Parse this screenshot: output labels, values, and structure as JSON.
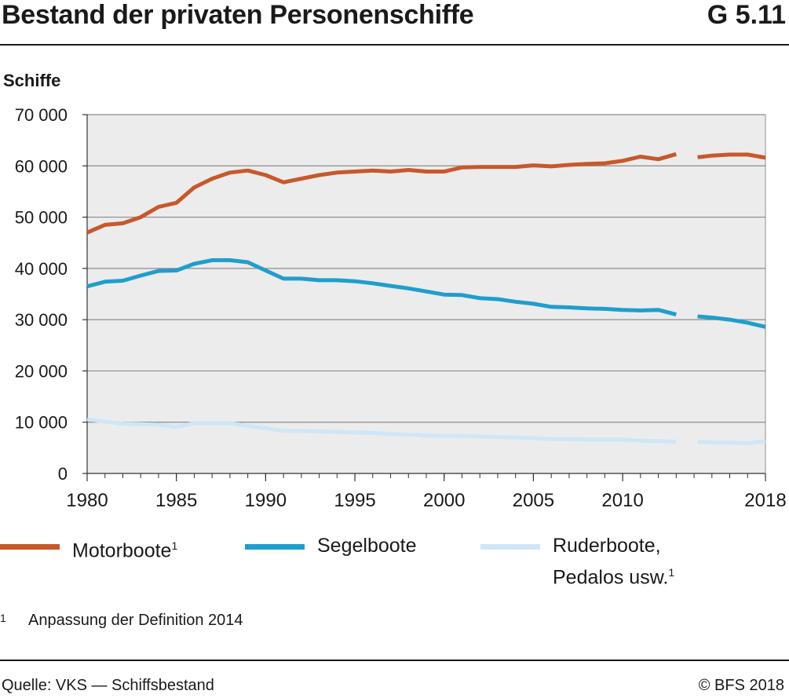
{
  "header": {
    "title": "Bestand der privaten Personenschiffe",
    "code": "G 5.11"
  },
  "legend": [
    {
      "label": "Motorboote",
      "sup": "1",
      "color": "#c8582a"
    },
    {
      "label": "Segelboote",
      "sup": "",
      "color": "#1f9ecc"
    },
    {
      "label_line1": "Ruderboote,",
      "label_line2": "Pedalos usw.",
      "sup": "1",
      "color": "#cfe6f7"
    }
  ],
  "footnote": {
    "mark": "1",
    "text": "Anpassung der Definition 2014"
  },
  "footer": {
    "source": "Quelle: VKS — Schiffsbestand",
    "copyright": "© BFS 2018"
  },
  "chart_data": {
    "type": "line",
    "title": "Bestand der privaten Personenschiffe",
    "ylabel": "Schiffe",
    "xlabel": "",
    "xlim": [
      1980,
      2018
    ],
    "ylim": [
      0,
      70000
    ],
    "x_ticks": [
      1980,
      1985,
      1990,
      1995,
      2000,
      2005,
      2010,
      2018
    ],
    "x_tick_labels": [
      "1980",
      "1985",
      "1990",
      "1995",
      "2000",
      "2005",
      "2010",
      "2018"
    ],
    "y_ticks": [
      0,
      10000,
      20000,
      30000,
      40000,
      50000,
      60000,
      70000
    ],
    "y_tick_labels": [
      "0",
      "10 000",
      "20 000",
      "30 000",
      "40 000",
      "50 000",
      "60 000",
      "70 000"
    ],
    "grid": "horizontal",
    "background": "#ececec",
    "series_break": {
      "after": 2013,
      "before": 2014,
      "note": "Anpassung der Definition 2014"
    },
    "x": [
      1980,
      1981,
      1982,
      1983,
      1984,
      1985,
      1986,
      1987,
      1988,
      1989,
      1990,
      1991,
      1992,
      1993,
      1994,
      1995,
      1996,
      1997,
      1998,
      1999,
      2000,
      2001,
      2002,
      2003,
      2004,
      2005,
      2006,
      2007,
      2008,
      2009,
      2010,
      2011,
      2012,
      2013,
      2014,
      2015,
      2016,
      2017,
      2018
    ],
    "series": [
      {
        "name": "Motorboote",
        "color": "#c8582a",
        "values": [
          47000,
          48500,
          48800,
          50000,
          52000,
          52800,
          55800,
          57500,
          58700,
          59100,
          58200,
          56800,
          57500,
          58200,
          58700,
          58900,
          59100,
          58900,
          59200,
          58900,
          58900,
          59700,
          59800,
          59800,
          59800,
          60100,
          59900,
          60200,
          60400,
          60500,
          61000,
          61800,
          61300,
          62300,
          61600,
          62000,
          62200,
          62200,
          61600
        ]
      },
      {
        "name": "Segelboote",
        "color": "#1f9ecc",
        "values": [
          36500,
          37400,
          37600,
          38600,
          39500,
          39600,
          40900,
          41600,
          41600,
          41200,
          39600,
          38000,
          38000,
          37700,
          37700,
          37500,
          37100,
          36600,
          36100,
          35500,
          34900,
          34800,
          34200,
          34000,
          33500,
          33100,
          32500,
          32400,
          32200,
          32100,
          31900,
          31800,
          31900,
          31000,
          30700,
          30400,
          30000,
          29400,
          28600
        ]
      },
      {
        "name": "Ruderboote, Pedalos usw.",
        "color": "#cfe6f7",
        "values": [
          10600,
          10100,
          9700,
          9600,
          9500,
          9100,
          9800,
          9800,
          9800,
          9300,
          8800,
          8300,
          8300,
          8200,
          8100,
          8000,
          7900,
          7700,
          7600,
          7400,
          7300,
          7300,
          7200,
          7100,
          7000,
          6900,
          6700,
          6700,
          6600,
          6600,
          6600,
          6400,
          6300,
          6200,
          6200,
          6100,
          6000,
          5900,
          6300
        ]
      }
    ]
  }
}
